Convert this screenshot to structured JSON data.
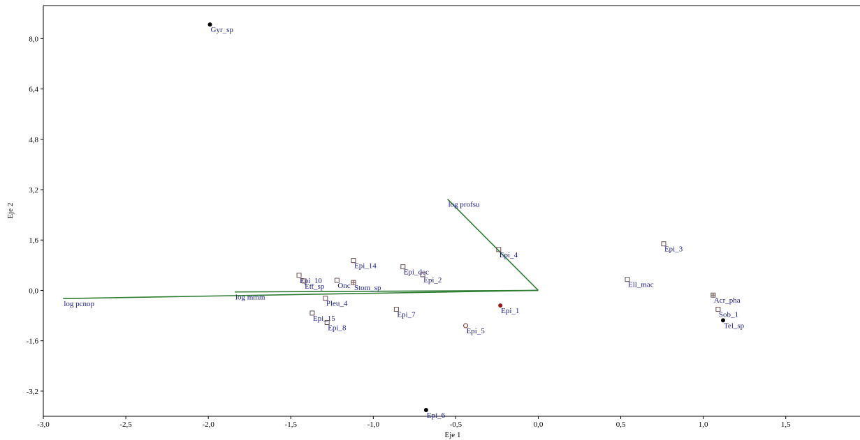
{
  "chart_data": {
    "type": "scatter",
    "title": "",
    "xlabel": "Eje 1",
    "ylabel": "Eje 2",
    "xlim": [
      -3.0,
      1.95
    ],
    "ylim": [
      -4.0,
      9.05
    ],
    "x_ticks": [
      {
        "value": -3.0,
        "label": "-3,0"
      },
      {
        "value": -2.5,
        "label": "-2,5"
      },
      {
        "value": -2.0,
        "label": "-2,0"
      },
      {
        "value": -1.5,
        "label": "-1,5"
      },
      {
        "value": -1.0,
        "label": "-1,0"
      },
      {
        "value": -0.5,
        "label": "-0,5"
      },
      {
        "value": 0.0,
        "label": "0,0"
      },
      {
        "value": 0.5,
        "label": "0,5"
      },
      {
        "value": 1.0,
        "label": "1,0"
      },
      {
        "value": 1.5,
        "label": "1,5"
      }
    ],
    "y_ticks": [
      {
        "value": 8.0,
        "label": "8,0"
      },
      {
        "value": 6.4,
        "label": "6,4"
      },
      {
        "value": 4.8,
        "label": "4,8"
      },
      {
        "value": 3.2,
        "label": "3,2"
      },
      {
        "value": 1.6,
        "label": "1,6"
      },
      {
        "value": 0.0,
        "label": "0,0"
      },
      {
        "value": -1.6,
        "label": "-1,6"
      },
      {
        "value": -3.2,
        "label": "-3,2"
      }
    ],
    "grid": false,
    "colors": {
      "vector": "#2e7d32",
      "label": "#1a1a8c",
      "square": "#6a4a4a",
      "filled_black": "#000000",
      "filled_red": "#a01818",
      "circle_open": "#7a2a2a",
      "axis": "#000000"
    },
    "points": [
      {
        "name": "Gyr_sp",
        "x": -1.99,
        "y": 8.45,
        "marker": "dot"
      },
      {
        "name": "Epi_6",
        "x": -0.68,
        "y": -3.8,
        "marker": "dot"
      },
      {
        "name": "Tel_sp",
        "x": 1.12,
        "y": -0.95,
        "marker": "dot"
      },
      {
        "name": "Epi_1",
        "x": -0.23,
        "y": -0.48,
        "marker": "dot-red"
      },
      {
        "name": "Epi_5",
        "x": -0.44,
        "y": -1.12,
        "marker": "circle"
      },
      {
        "name": "Epi_3",
        "x": 0.76,
        "y": 1.48,
        "marker": "square"
      },
      {
        "name": "Ell_mac",
        "x": 0.54,
        "y": 0.35,
        "marker": "square"
      },
      {
        "name": "Acr_pha",
        "x": 1.06,
        "y": -0.15,
        "marker": "square-cross"
      },
      {
        "name": "Sob_1",
        "x": 1.09,
        "y": -0.6,
        "marker": "square"
      },
      {
        "name": "Epi_4",
        "x": -0.24,
        "y": 1.3,
        "marker": "square"
      },
      {
        "name": "Epi_14",
        "x": -1.12,
        "y": 0.95,
        "marker": "square"
      },
      {
        "name": "Epi_dec",
        "x": -0.82,
        "y": 0.75,
        "marker": "square"
      },
      {
        "name": "Epi_2",
        "x": -0.7,
        "y": 0.5,
        "marker": "square"
      },
      {
        "name": "Epi_10",
        "x": -1.45,
        "y": 0.48,
        "marker": "square"
      },
      {
        "name": "Ett_sp",
        "x": -1.42,
        "y": 0.3,
        "marker": "square"
      },
      {
        "name": "Onc",
        "x": -1.22,
        "y": 0.32,
        "marker": "square"
      },
      {
        "name": "Stom_sp",
        "x": -1.12,
        "y": 0.25,
        "marker": "square-cross"
      },
      {
        "name": "Pleu_4",
        "x": -1.29,
        "y": -0.25,
        "marker": "square"
      },
      {
        "name": "Epi_7",
        "x": -0.86,
        "y": -0.6,
        "marker": "square"
      },
      {
        "name": "Epi_15",
        "x": -1.37,
        "y": -0.72,
        "marker": "square"
      },
      {
        "name": "Epi_8",
        "x": -1.28,
        "y": -1.02,
        "marker": "square"
      }
    ],
    "vectors": [
      {
        "name": "log pcnop",
        "x": -2.88,
        "y": -0.26
      },
      {
        "name": "log mmm",
        "x": -1.84,
        "y": -0.05
      },
      {
        "name": "log profsu",
        "x": -0.55,
        "y": 2.9
      }
    ]
  }
}
